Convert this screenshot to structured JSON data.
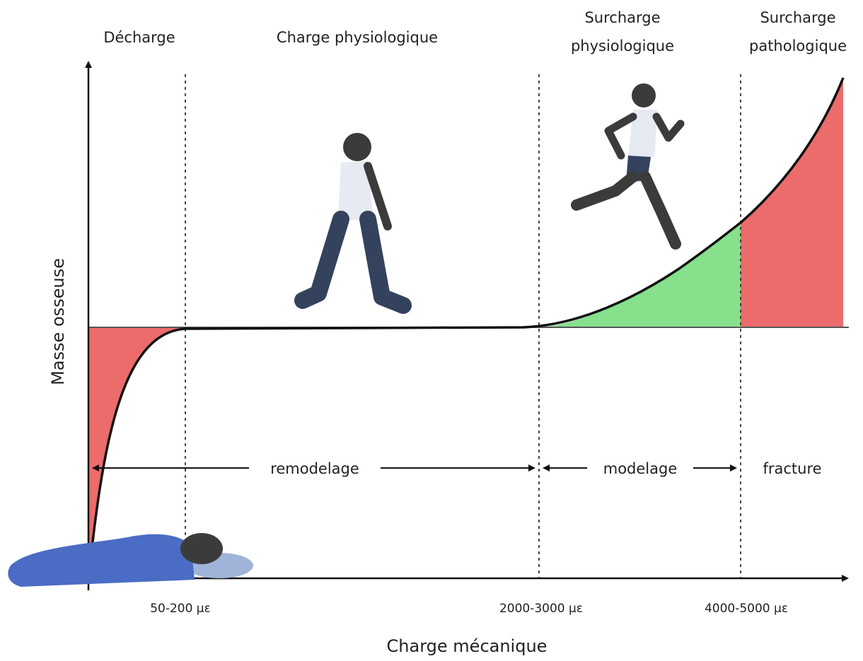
{
  "zones": [
    {
      "lines": [
        "Décharge"
      ]
    },
    {
      "lines": [
        "Charge physiologique"
      ]
    },
    {
      "lines": [
        "Surcharge",
        "physiologique"
      ]
    },
    {
      "lines": [
        "Surcharge",
        "pathologique"
      ]
    }
  ],
  "axes": {
    "y_label": "Masse osseuse",
    "x_label": "Charge mécanique"
  },
  "ranges": [
    "remodelage",
    "modelage",
    "fracture"
  ],
  "thresholds": [
    "50-200 με",
    "2000-3000 με",
    "4000-5000 με"
  ]
}
